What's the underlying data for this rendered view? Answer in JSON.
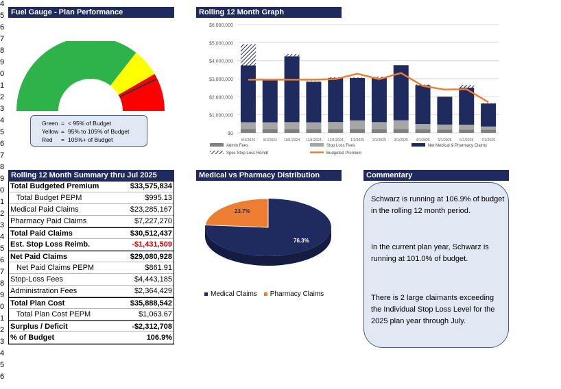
{
  "row_numbers": [
    "4",
    "5",
    "6",
    "7",
    "8",
    "9",
    "0",
    "1",
    "2",
    "3",
    "4",
    "5",
    "6",
    "7",
    "8",
    "9",
    "0",
    "1",
    "2",
    "3",
    "4",
    "5",
    "6",
    "7",
    "8",
    "9",
    "0",
    "1",
    "2",
    "3",
    "4",
    "5",
    "6"
  ],
  "gauge": {
    "title": "Fuel Gauge - Plan Performance",
    "value_pct": 106.9,
    "legend": [
      {
        "key": "Green",
        "text": "< 95% of Budget"
      },
      {
        "key": "Yellow",
        "text": "95% to 105% of Budget"
      },
      {
        "key": "Red",
        "text": "105%+ of Budget"
      }
    ],
    "colors": {
      "green": "#2db34a",
      "yellow": "#ffff00",
      "red": "#ff0000",
      "needle": "#333333"
    }
  },
  "rolling": {
    "title": "Rolling 12 Month Graph",
    "legend": {
      "admin": "Admin Fees",
      "stoploss_fees": "Stop Loss Fees",
      "net_medical": "Net Medical & Pharmacy Claims",
      "spec_reimb": "Spec Stop Loss Reimb",
      "budget": "Budgeted Premium"
    }
  },
  "chart_data": {
    "type": "bar",
    "stacked": true,
    "categories": [
      "8/1/2024",
      "9/1/2024",
      "10/1/2024",
      "11/1/2024",
      "12/1/2024",
      "1/1/2025",
      "2/1/2025",
      "3/1/2025",
      "4/1/2025",
      "5/1/2025",
      "6/1/2025",
      "7/1/2025"
    ],
    "y_tick_labels": [
      "$0",
      "$1,000,000",
      "$2,000,000",
      "$3,000,000",
      "$4,000,000",
      "$5,000,000",
      "$6,000,000"
    ],
    "ylim": [
      0,
      6000000
    ],
    "grid": true,
    "legend_position": "bottom",
    "series": [
      {
        "name": "Admin Fees",
        "color": "#7f7f7f",
        "values": [
          220000,
          215000,
          220000,
          215000,
          220000,
          220000,
          215000,
          220000,
          190000,
          185000,
          185000,
          170000
        ]
      },
      {
        "name": "Stop Loss Fees",
        "color": "#a6a6a6",
        "values": [
          370000,
          370000,
          375000,
          370000,
          380000,
          470000,
          380000,
          480000,
          300000,
          275000,
          270000,
          180000
        ]
      },
      {
        "name": "Net Medical & Pharmacy Claims",
        "color": "#1f2a5e",
        "values": [
          3150000,
          2350000,
          3650000,
          2250000,
          2450000,
          2350000,
          2450000,
          3050000,
          2150000,
          1550000,
          2050000,
          1280000
        ]
      },
      {
        "name": "Spec Stop Loss Reimb",
        "color": "#1f2a5e",
        "pattern": "hatch",
        "values": [
          1180000,
          60000,
          130000,
          20000,
          40000,
          40000,
          80000,
          0,
          40000,
          0,
          150000,
          20000
        ]
      },
      {
        "name": "Budgeted Premium",
        "type": "line",
        "color": "#ed7d31",
        "values": [
          2950000,
          2950000,
          2950000,
          2950000,
          2980000,
          3280000,
          2980000,
          3320000,
          2600000,
          2400000,
          2420000,
          1700000
        ]
      }
    ]
  },
  "summary": {
    "title": "Rolling 12 Month Summary thru Jul 2025",
    "rows": [
      {
        "label": "Total Budgeted Premium",
        "value": "$33,575,834",
        "style": "bold"
      },
      {
        "label": "Total Budget PEPM",
        "value": "$995.13",
        "style": "indent"
      },
      {
        "label": "Medical Paid Claims",
        "value": "$23,285,167",
        "style": ""
      },
      {
        "label": "Pharmacy Paid Claims",
        "value": "$7,227,270",
        "style": ""
      },
      {
        "label": "Total Paid Claims",
        "value": "$30,512,437",
        "style": "bold"
      },
      {
        "label": "Est. Stop Loss Reimb.",
        "value": "-$1,431,509",
        "style": "bold",
        "negative": true
      },
      {
        "label": "Net Paid Claims",
        "value": "$29,080,928",
        "style": "bold"
      },
      {
        "label": "Net Paid Claims PEPM",
        "value": "$861.91",
        "style": "indent"
      },
      {
        "label": "Stop-Loss Fees",
        "value": "$4,443,185",
        "style": ""
      },
      {
        "label": "Administration Fees",
        "value": "$2,364,429",
        "style": ""
      },
      {
        "label": "Total Plan Cost",
        "value": "$35,888,542",
        "style": "bold"
      },
      {
        "label": "Total Plan Cost PEPM",
        "value": "$1,063.67",
        "style": "indent"
      },
      {
        "label": "Surplus / Deficit",
        "value": "-$2,312,708",
        "style": "bold"
      },
      {
        "label": "% of Budget",
        "value": "106.9%",
        "style": "bold"
      }
    ]
  },
  "distribution": {
    "title": "Medical vs Pharmacy Distribution",
    "slices": [
      {
        "name": "Medical Claims",
        "pct": 76.3,
        "label": "76.3%",
        "color": "#1f2a5e"
      },
      {
        "name": "Pharmacy Claims",
        "pct": 23.7,
        "label": "23.7%",
        "color": "#ed7d31"
      }
    ]
  },
  "commentary": {
    "title": "Commentary",
    "paragraphs": [
      "Schwarz is running at 106.9% of budget in the rolling 12 month period.",
      "In the current plan year, Schwarz is running at 101.0% of budget.",
      "There is 2 large claimants exceeding the Individual Stop Loss Level for the 2025 plan year through July."
    ]
  }
}
